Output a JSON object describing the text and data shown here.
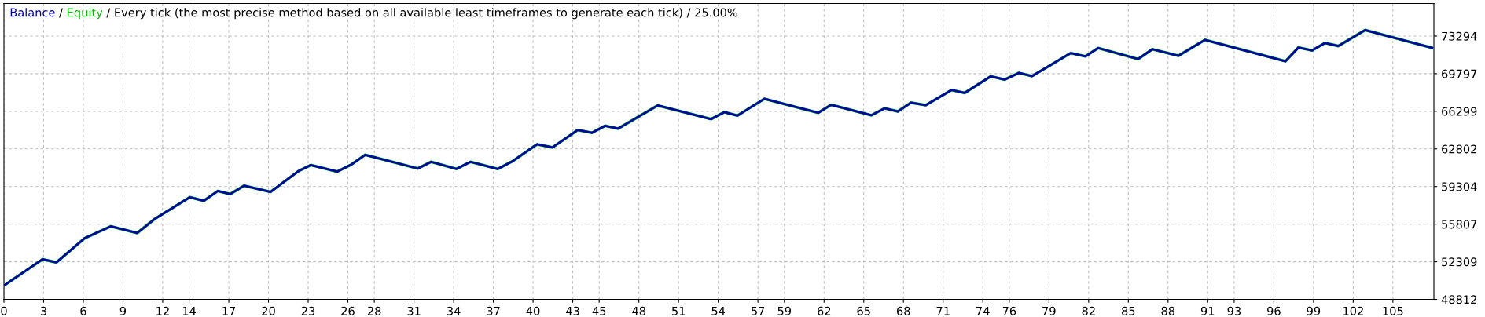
{
  "chart_data": {
    "type": "line",
    "title": "Every tick (the most precise method based on all available least timeframes to generate each tick) / 25.00%",
    "legend": "top left",
    "annotations": [
      "/",
      "/"
    ],
    "grid": true,
    "line_style": "solid",
    "marker": "none",
    "x": [
      0,
      2.92,
      3.97,
      6.1,
      8.08,
      10.07,
      11.4,
      14.05,
      15.11,
      16.17,
      17.1,
      18.16,
      20.15,
      22.28,
      23.2,
      25.19,
      26.25,
      27.31,
      31.29,
      32.3,
      34.2,
      35.27,
      37.33,
      38.45,
      40.3,
      41.47,
      43.38,
      44.44,
      45.45,
      46.43,
      49.43,
      53.46,
      54.46,
      55.45,
      57.49,
      61.55,
      62.53,
      65.58,
      66.58,
      67.57,
      68.57,
      69.69,
      71.63,
      72.63,
      74.6,
      75.65,
      76.72,
      77.72,
      80.64,
      81.76,
      82.72,
      85.74,
      86.82,
      88.78,
      90.79,
      96.88,
      97.86,
      98.89,
      99.87,
      100.87,
      102.9,
      107.97
    ],
    "series": [
      {
        "name": "Equity",
        "color": "#00c000",
        "values": [
          50100,
          52540,
          52250,
          54500,
          55600,
          54980,
          56290,
          58310,
          57980,
          58890,
          58600,
          59380,
          58800,
          60750,
          61300,
          60690,
          61340,
          62250,
          60980,
          61600,
          60940,
          61600,
          60940,
          61660,
          63230,
          62940,
          64560,
          64300,
          64950,
          64690,
          66840,
          65570,
          66220,
          65900,
          67460,
          66160,
          66900,
          65930,
          66580,
          66280,
          67100,
          66870,
          68280,
          68010,
          69550,
          69250,
          69870,
          69570,
          71710,
          71410,
          72180,
          71160,
          72070,
          71460,
          72940,
          70950,
          72230,
          71960,
          72650,
          72370,
          73850,
          72200
        ]
      },
      {
        "name": "Balance",
        "color": "#0000a8",
        "values": [
          50100,
          52540,
          52250,
          54500,
          55600,
          54980,
          56290,
          58310,
          57980,
          58890,
          58600,
          59380,
          58800,
          60750,
          61300,
          60690,
          61340,
          62250,
          60980,
          61600,
          60940,
          61600,
          60940,
          61660,
          63230,
          62940,
          64560,
          64300,
          64950,
          64690,
          66840,
          65570,
          66220,
          65900,
          67460,
          66160,
          66900,
          65930,
          66580,
          66280,
          67100,
          66870,
          68280,
          68010,
          69550,
          69250,
          69870,
          69570,
          71710,
          71410,
          72180,
          71160,
          72070,
          71460,
          72940,
          70950,
          72230,
          71960,
          72650,
          72370,
          73850,
          72200
        ]
      }
    ],
    "xlim": [
      0,
      108.1
    ],
    "xticks": [
      0,
      3,
      6,
      9,
      12,
      14,
      17,
      20,
      23,
      26,
      28,
      31,
      34,
      37,
      40,
      43,
      45,
      48,
      51,
      54,
      57,
      59,
      62,
      65,
      68,
      71,
      74,
      76,
      79,
      82,
      85,
      88,
      91,
      93,
      96,
      99,
      102,
      105
    ],
    "ylim": [
      48812,
      76320
    ],
    "yticks": [
      48812,
      52309,
      55807,
      59304,
      62802,
      66299,
      69797,
      73294
    ]
  }
}
